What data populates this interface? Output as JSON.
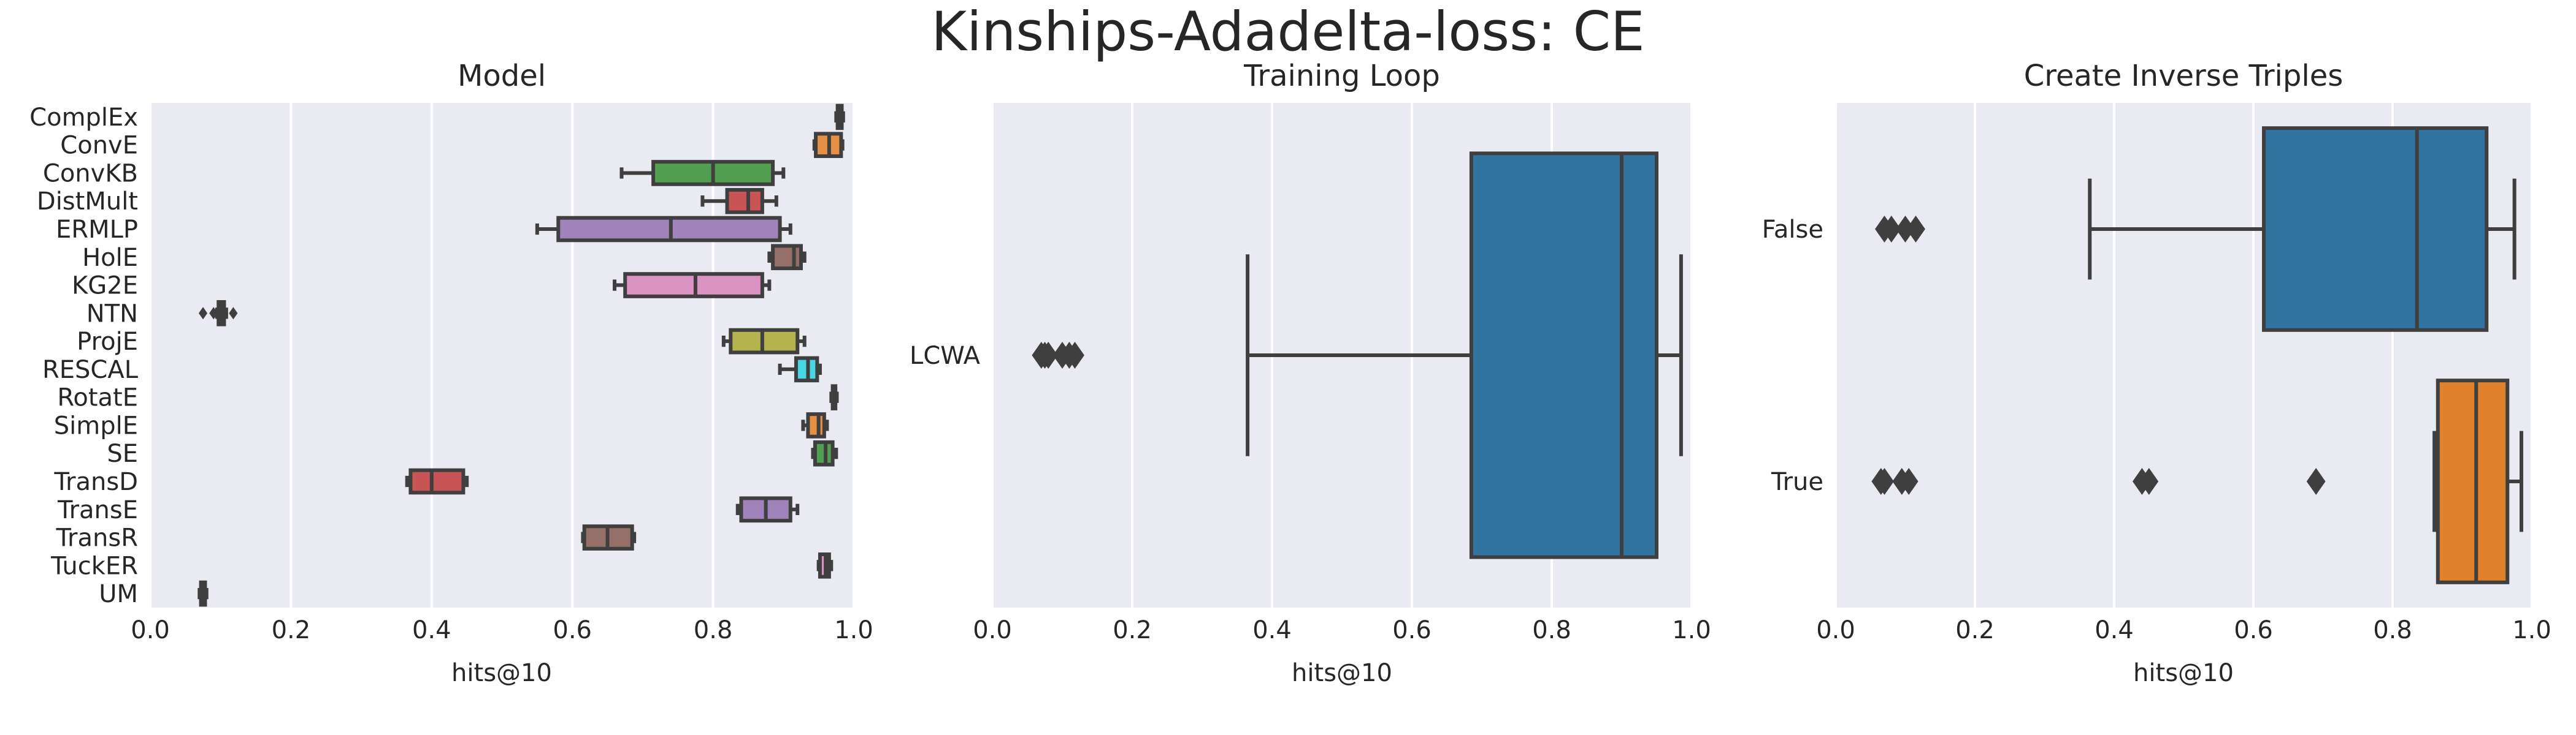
{
  "figure": {
    "title": "Kinships-Adadelta-loss: CE"
  },
  "chart_data": [
    {
      "type": "box",
      "title": "Model",
      "xlabel": "hits@10",
      "ylabel": "",
      "xlim": [
        0.0,
        1.0
      ],
      "xticks": [
        "0.0",
        "0.2",
        "0.4",
        "0.6",
        "0.8",
        "1.0"
      ],
      "grid": true,
      "categories": [
        "ComplEx",
        "ConvE",
        "ConvKB",
        "DistMult",
        "ERMLP",
        "HolE",
        "KG2E",
        "NTN",
        "ProjE",
        "RESCAL",
        "RotatE",
        "SimplE",
        "SE",
        "TransD",
        "TransE",
        "TransR",
        "TuckER",
        "UM"
      ],
      "colors": [
        "#3274a1",
        "#e1812c",
        "#3a923a",
        "#c03d3e",
        "#9372b2",
        "#845b53",
        "#d684bd",
        "#7f7f7f",
        "#a9aa35",
        "#2ed0df",
        "#3274a1",
        "#e1812c",
        "#3a923a",
        "#c03d3e",
        "#9372b2",
        "#845b53",
        "#d684bd",
        "#7f7f7f"
      ],
      "boxes": [
        {
          "whislo": 0.975,
          "q1": 0.977,
          "med": 0.98,
          "q3": 0.983,
          "whishi": 0.985,
          "fliers": []
        },
        {
          "whislo": 0.944,
          "q1": 0.946,
          "med": 0.965,
          "q3": 0.982,
          "whishi": 0.984,
          "fliers": []
        },
        {
          "whislo": 0.67,
          "q1": 0.715,
          "med": 0.8,
          "q3": 0.885,
          "whishi": 0.9,
          "fliers": []
        },
        {
          "whislo": 0.785,
          "q1": 0.82,
          "med": 0.85,
          "q3": 0.87,
          "whishi": 0.89,
          "fliers": []
        },
        {
          "whislo": 0.55,
          "q1": 0.58,
          "med": 0.74,
          "q3": 0.895,
          "whishi": 0.91,
          "fliers": []
        },
        {
          "whislo": 0.88,
          "q1": 0.885,
          "med": 0.915,
          "q3": 0.925,
          "whishi": 0.93,
          "fliers": []
        },
        {
          "whislo": 0.66,
          "q1": 0.675,
          "med": 0.775,
          "q3": 0.87,
          "whishi": 0.88,
          "fliers": []
        },
        {
          "whislo": 0.095,
          "q1": 0.097,
          "med": 0.1,
          "q3": 0.105,
          "whishi": 0.108,
          "fliers": [
            0.075,
            0.09,
            0.118
          ]
        },
        {
          "whislo": 0.815,
          "q1": 0.825,
          "med": 0.87,
          "q3": 0.92,
          "whishi": 0.93,
          "fliers": []
        },
        {
          "whislo": 0.895,
          "q1": 0.918,
          "med": 0.935,
          "q3": 0.948,
          "whishi": 0.952,
          "fliers": []
        },
        {
          "whislo": 0.968,
          "q1": 0.97,
          "med": 0.972,
          "q3": 0.974,
          "whishi": 0.976,
          "fliers": []
        },
        {
          "whislo": 0.928,
          "q1": 0.935,
          "med": 0.95,
          "q3": 0.958,
          "whishi": 0.962,
          "fliers": []
        },
        {
          "whislo": 0.942,
          "q1": 0.945,
          "med": 0.96,
          "q3": 0.97,
          "whishi": 0.975,
          "fliers": []
        },
        {
          "whislo": 0.365,
          "q1": 0.37,
          "med": 0.4,
          "q3": 0.445,
          "whishi": 0.45,
          "fliers": []
        },
        {
          "whislo": 0.835,
          "q1": 0.84,
          "med": 0.875,
          "q3": 0.91,
          "whishi": 0.92,
          "fliers": []
        },
        {
          "whislo": 0.615,
          "q1": 0.617,
          "med": 0.65,
          "q3": 0.685,
          "whishi": 0.688,
          "fliers": []
        },
        {
          "whislo": 0.95,
          "q1": 0.952,
          "med": 0.96,
          "q3": 0.965,
          "whishi": 0.968,
          "fliers": []
        },
        {
          "whislo": 0.07,
          "q1": 0.072,
          "med": 0.075,
          "q3": 0.078,
          "whishi": 0.08,
          "fliers": []
        }
      ]
    },
    {
      "type": "box",
      "title": "Training Loop",
      "xlabel": "hits@10",
      "ylabel": "",
      "xlim": [
        0.0,
        1.0
      ],
      "xticks": [
        "0.0",
        "0.2",
        "0.4",
        "0.6",
        "0.8",
        "1.0"
      ],
      "grid": true,
      "categories": [
        "LCWA"
      ],
      "colors": [
        "#3274a1"
      ],
      "boxes": [
        {
          "whislo": 0.365,
          "q1": 0.685,
          "med": 0.9,
          "q3": 0.95,
          "whishi": 0.985,
          "fliers": [
            0.07,
            0.075,
            0.08,
            0.1,
            0.11,
            0.118
          ]
        }
      ]
    },
    {
      "type": "box",
      "title": "Create Inverse Triples",
      "xlabel": "hits@10",
      "ylabel": "",
      "xlim": [
        0.0,
        1.0
      ],
      "xticks": [
        "0.0",
        "0.2",
        "0.4",
        "0.6",
        "0.8",
        "1.0"
      ],
      "grid": true,
      "categories": [
        "False",
        "True"
      ],
      "colors": [
        "#3274a1",
        "#e1812c"
      ],
      "boxes": [
        {
          "whislo": 0.365,
          "q1": 0.615,
          "med": 0.835,
          "q3": 0.935,
          "whishi": 0.975,
          "fliers": [
            0.07,
            0.08,
            0.1,
            0.115
          ]
        },
        {
          "whislo": 0.86,
          "q1": 0.865,
          "med": 0.92,
          "q3": 0.965,
          "whishi": 0.985,
          "fliers": [
            0.065,
            0.07,
            0.095,
            0.105,
            0.44,
            0.45,
            0.69
          ]
        }
      ]
    }
  ]
}
